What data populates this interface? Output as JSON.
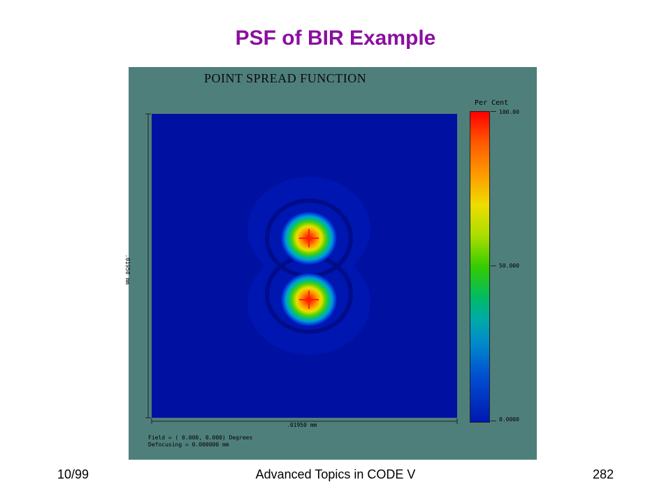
{
  "slide": {
    "title": "PSF of BIR Example",
    "footer_left": "10/99",
    "footer_center": "Advanced Topics in CODE V",
    "footer_right": "282"
  },
  "plot": {
    "heading": "POINT SPREAD FUNCTION",
    "x_axis_label": ".01950 mm",
    "y_axis_label": ".01950 mm",
    "field_line": "Field = ( 0.000, 0.000) Degrees",
    "defocus_line": "Defocusing = 0.000000 mm",
    "colorbar_title": "Per Cent",
    "colorbar_ticks": [
      "100.00",
      "50.000",
      "0.0000"
    ]
  },
  "colors": {
    "title": "#8a0fa0",
    "panel_background": "#4f7f7b",
    "map_background": "#0010a0"
  },
  "chart_data": {
    "type": "heatmap",
    "title": "POINT SPREAD FUNCTION",
    "xlabel": ".01950 mm",
    "ylabel": ".01950 mm",
    "colorbar_label": "Per Cent",
    "colorbar_range": [
      0,
      100
    ],
    "peaks": [
      {
        "value": 100
      },
      {
        "value": 100
      }
    ]
  }
}
